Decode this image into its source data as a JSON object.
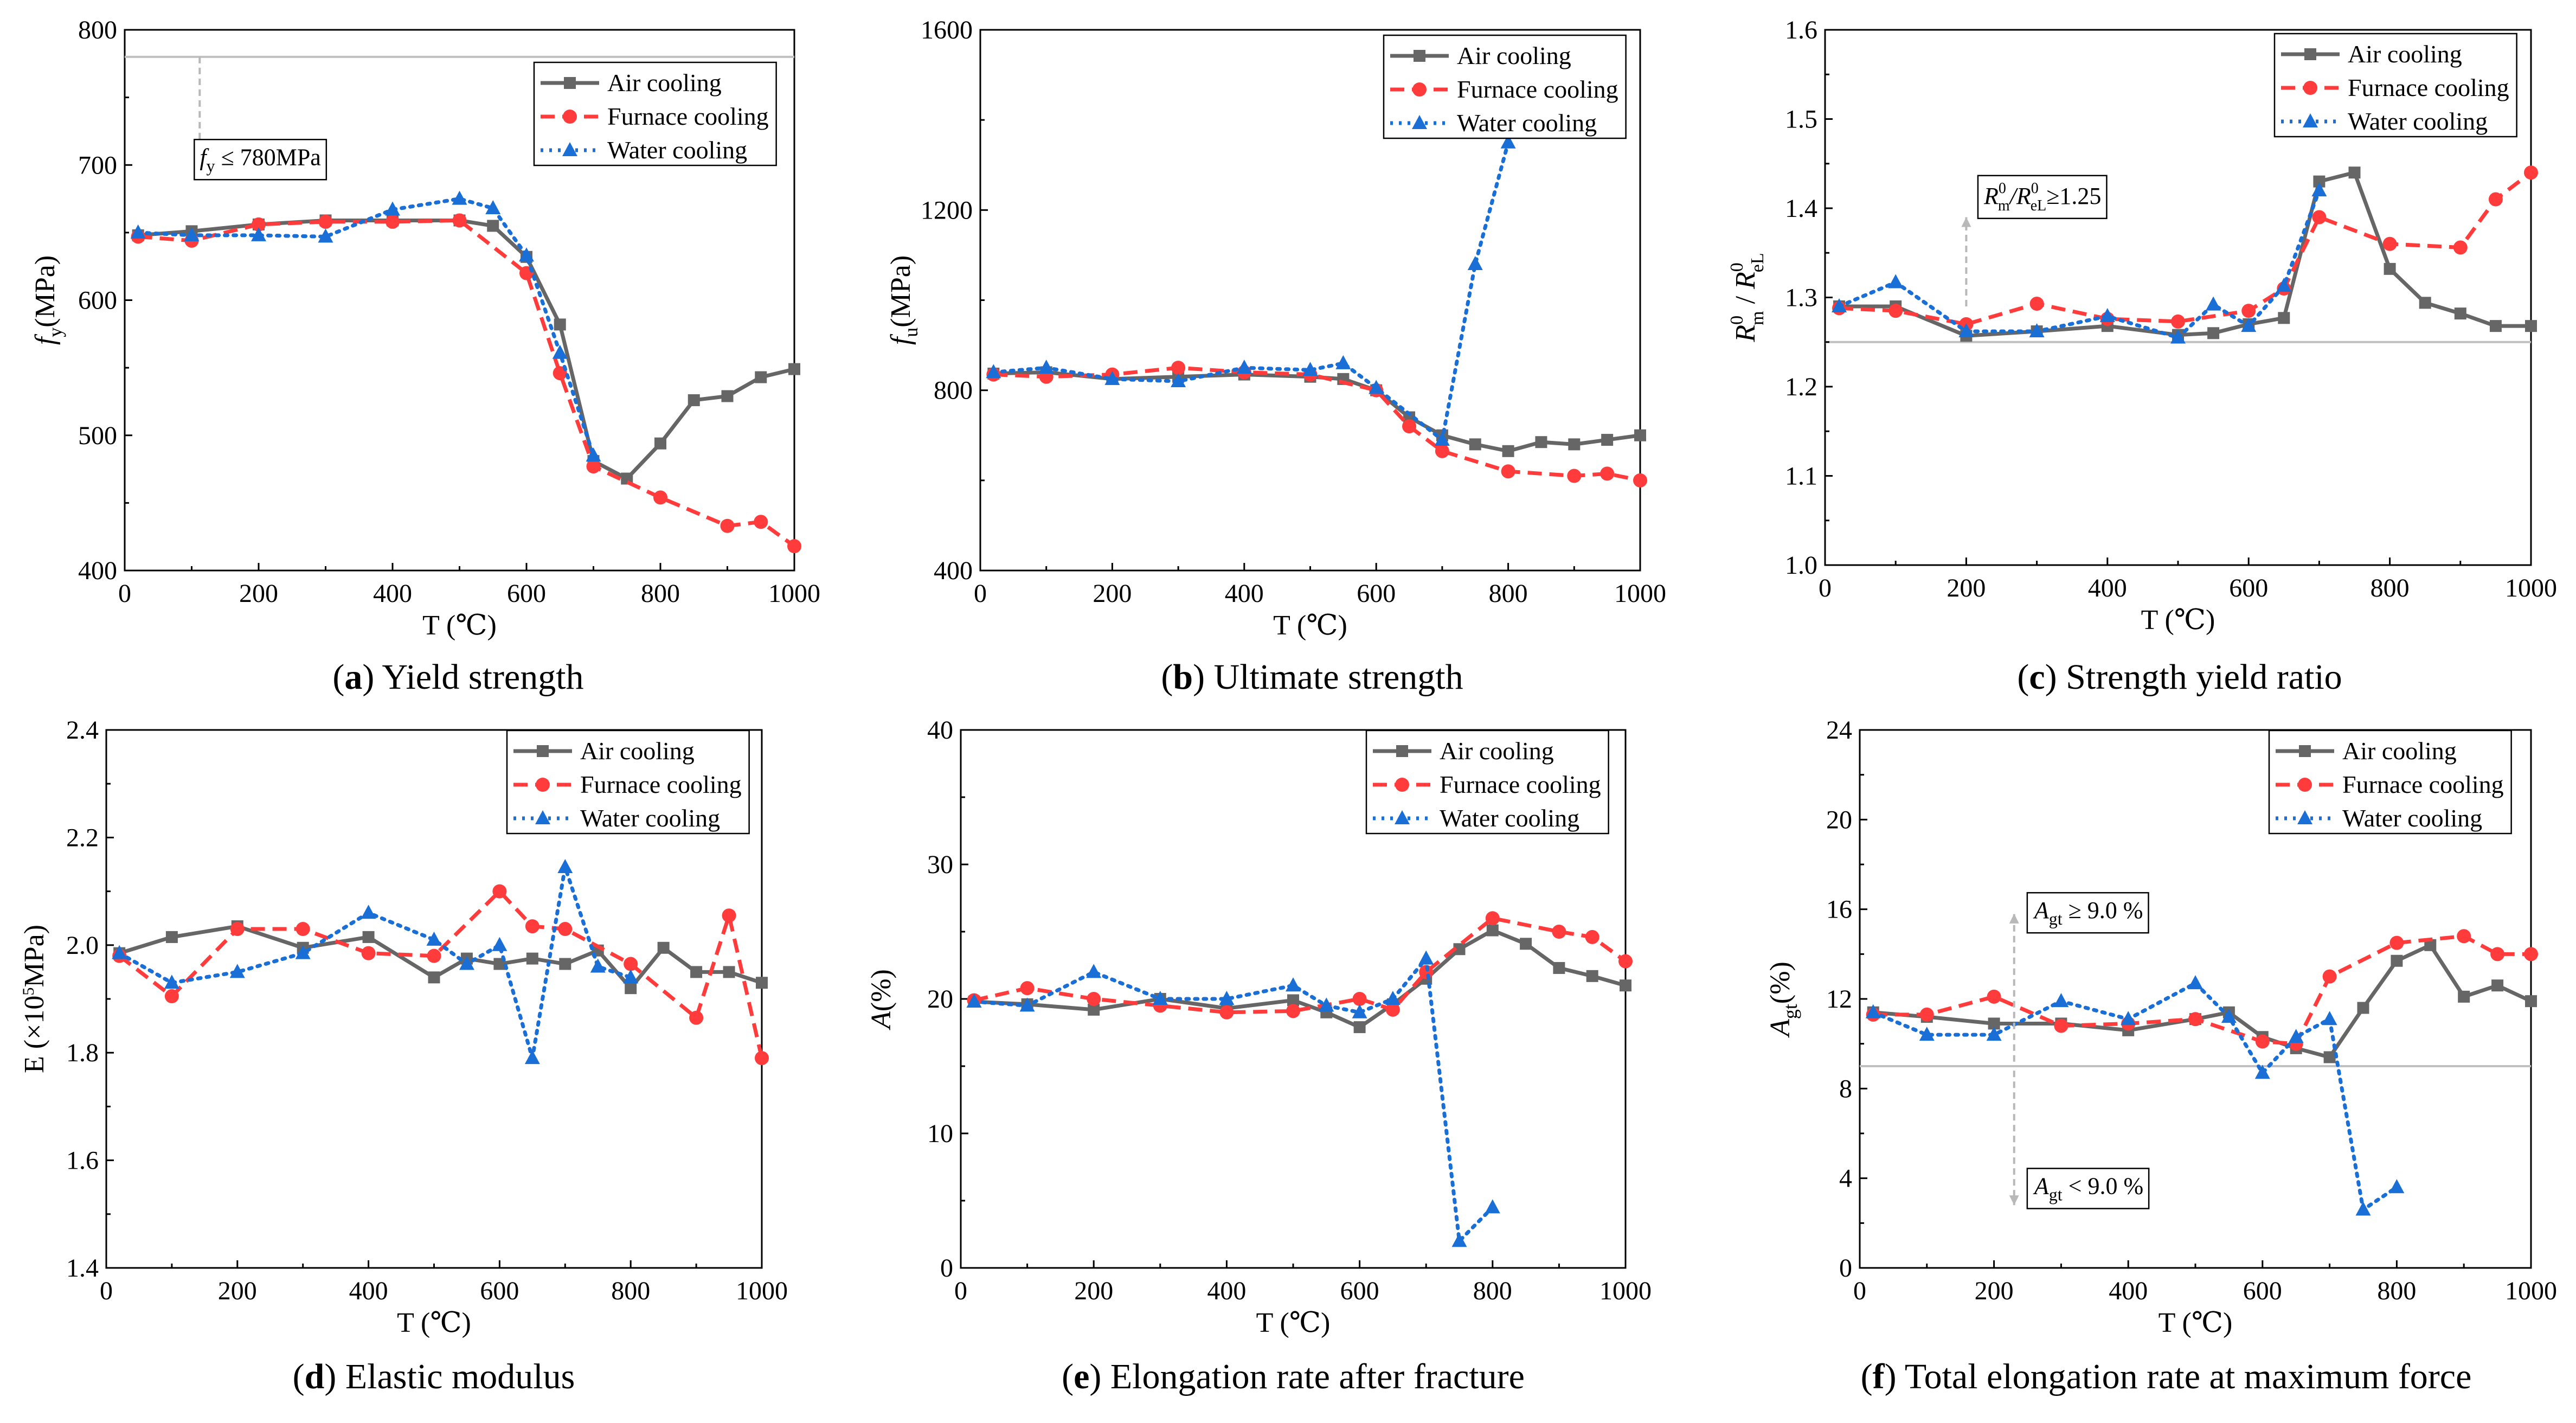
{
  "legend_labels": [
    "Air cooling",
    "Furnace cooling",
    "Water cooling"
  ],
  "series_colors": {
    "Air cooling": "#666666",
    "Furnace cooling": "#ff3b3b",
    "Water cooling": "#1a6fd6"
  },
  "marker_names": {
    "Air cooling": "square-marker",
    "Furnace cooling": "circle-marker",
    "Water cooling": "triangle-marker"
  },
  "chart_data": [
    {
      "id": "a",
      "type": "line",
      "caption_letter": "(a)",
      "caption_text": " Yield strength",
      "xlabel": "T (℃)",
      "ylabel_main": "f",
      "ylabel_sub": "y",
      "ylabel_tail": "(MPa)",
      "xlim": [
        0,
        1000
      ],
      "ylim": [
        400,
        800
      ],
      "xticks": [
        "0",
        "200",
        "400",
        "600",
        "800",
        "1000"
      ],
      "yticks": [
        "400",
        "500",
        "600",
        "700",
        "800"
      ],
      "ref_line": 780,
      "annotations": [
        {
          "text": "f",
          "sub": "y",
          "tail": " ≤ 780MPa",
          "x": 112,
          "y": 700,
          "arrow": [
            [
              112,
              780
            ],
            [
              112,
              705
            ]
          ]
        }
      ],
      "series": [
        {
          "name": "Air cooling",
          "x": [
            20,
            100,
            200,
            300,
            400,
            500,
            550,
            600,
            650,
            700,
            750,
            800,
            850,
            900,
            950,
            1000
          ],
          "values": [
            648,
            651,
            656,
            659,
            659,
            659,
            655,
            632,
            582,
            481,
            468,
            494,
            526,
            529,
            543,
            549
          ]
        },
        {
          "name": "Furnace cooling",
          "x": [
            20,
            100,
            200,
            300,
            400,
            500,
            600,
            650,
            700,
            800,
            900,
            950,
            1000
          ],
          "values": [
            647,
            644,
            656,
            658,
            658,
            659,
            620,
            546,
            477,
            454,
            433,
            436,
            418
          ]
        },
        {
          "name": "Water cooling",
          "x": [
            20,
            100,
            200,
            300,
            400,
            500,
            550,
            600,
            650,
            700
          ],
          "values": [
            650,
            648,
            648,
            647,
            667,
            675,
            668,
            633,
            561,
            485
          ]
        }
      ]
    },
    {
      "id": "b",
      "type": "line",
      "caption_letter": "(b)",
      "caption_text": " Ultimate strength",
      "xlabel": "T (℃)",
      "ylabel_main": "f",
      "ylabel_sub": "u",
      "ylabel_tail": "(MPa)",
      "xlim": [
        0,
        1000
      ],
      "ylim": [
        400,
        1600
      ],
      "xticks": [
        "0",
        "200",
        "400",
        "600",
        "800",
        "1000"
      ],
      "yticks": [
        "400",
        "800",
        "1200",
        "1600"
      ],
      "series": [
        {
          "name": "Air cooling",
          "x": [
            20,
            100,
            200,
            300,
            400,
            500,
            550,
            600,
            650,
            700,
            750,
            800,
            850,
            900,
            950,
            1000
          ],
          "values": [
            837,
            840,
            825,
            830,
            835,
            830,
            825,
            800,
            740,
            700,
            680,
            665,
            685,
            680,
            690,
            700
          ]
        },
        {
          "name": "Furnace cooling",
          "x": [
            20,
            100,
            200,
            300,
            400,
            500,
            600,
            650,
            700,
            800,
            900,
            950,
            1000
          ],
          "values": [
            835,
            830,
            835,
            850,
            840,
            835,
            800,
            720,
            665,
            620,
            610,
            615,
            600
          ]
        },
        {
          "name": "Water cooling",
          "x": [
            20,
            100,
            200,
            300,
            400,
            500,
            550,
            600,
            700,
            750,
            800
          ],
          "values": [
            840,
            850,
            825,
            820,
            850,
            845,
            860,
            805,
            690,
            1080,
            1350
          ]
        }
      ]
    },
    {
      "id": "c",
      "type": "line",
      "caption_letter": "(c)",
      "caption_text": " Strength yield ratio",
      "xlabel": "T (℃)",
      "xlim": [
        0,
        1000
      ],
      "ylim": [
        1.0,
        1.6
      ],
      "xticks": [
        "0",
        "200",
        "400",
        "600",
        "800",
        "1000"
      ],
      "yticks": [
        "1.0",
        "1.1",
        "1.2",
        "1.3",
        "1.4",
        "1.5",
        "1.6"
      ],
      "ylabel_rich": {
        "r1": "R",
        "r1_sup": "0",
        "r1_sub": "m",
        "slash": " / ",
        "r2": "R",
        "r2_sup": "0",
        "r2_sub": "eL"
      },
      "ref_line": 1.25,
      "annotations": [
        {
          "text": "R",
          "sup": "0",
          "sub": "m",
          "mid": "/R",
          "sup2": "0",
          "sub2": "eL",
          "tail": "≥1.25",
          "x": 225,
          "y": 1.405,
          "arrow": [
            [
              200,
              1.29
            ],
            [
              200,
              1.39
            ]
          ]
        }
      ],
      "series": [
        {
          "name": "Air cooling",
          "x": [
            20,
            100,
            200,
            300,
            400,
            500,
            550,
            600,
            650,
            700,
            750,
            800,
            850,
            900,
            950,
            1000
          ],
          "values": [
            1.29,
            1.29,
            1.257,
            1.262,
            1.268,
            1.258,
            1.26,
            1.27,
            1.277,
            1.43,
            1.44,
            1.332,
            1.294,
            1.282,
            1.268,
            1.268
          ]
        },
        {
          "name": "Furnace cooling",
          "x": [
            20,
            100,
            200,
            300,
            400,
            500,
            600,
            650,
            700,
            800,
            900,
            950,
            1000
          ],
          "values": [
            1.288,
            1.285,
            1.27,
            1.293,
            1.276,
            1.273,
            1.285,
            1.31,
            1.39,
            1.36,
            1.356,
            1.41,
            1.44
          ]
        },
        {
          "name": "Water cooling",
          "x": [
            20,
            100,
            200,
            300,
            400,
            500,
            550,
            600,
            650,
            700
          ],
          "values": [
            1.29,
            1.317,
            1.262,
            1.262,
            1.279,
            1.255,
            1.292,
            1.268,
            1.313,
            1.42
          ]
        }
      ]
    },
    {
      "id": "d",
      "type": "line",
      "caption_letter": "(d)",
      "caption_text": " Elastic modulus",
      "xlabel": "T (℃)",
      "ylabel_rich": {
        "pre": "E (×10",
        "sup": "5",
        "post": "MPa)"
      },
      "xlim": [
        0,
        1000
      ],
      "ylim": [
        1.4,
        2.4
      ],
      "xticks": [
        "0",
        "200",
        "400",
        "600",
        "800",
        "1000"
      ],
      "yticks": [
        "1.4",
        "1.6",
        "1.8",
        "2.0",
        "2.2",
        "2.4"
      ],
      "series": [
        {
          "name": "Air cooling",
          "x": [
            20,
            100,
            200,
            300,
            400,
            500,
            550,
            600,
            650,
            700,
            750,
            800,
            850,
            900,
            950,
            1000
          ],
          "values": [
            1.985,
            2.015,
            2.035,
            1.995,
            2.015,
            1.94,
            1.975,
            1.965,
            1.975,
            1.965,
            1.99,
            1.92,
            1.995,
            1.95,
            1.95,
            1.93
          ]
        },
        {
          "name": "Furnace cooling",
          "x": [
            20,
            100,
            200,
            300,
            400,
            500,
            600,
            650,
            700,
            800,
            900,
            950,
            1000
          ],
          "values": [
            1.98,
            1.905,
            2.03,
            2.03,
            1.985,
            1.98,
            2.1,
            2.035,
            2.03,
            1.965,
            1.865,
            2.055,
            1.79
          ]
        },
        {
          "name": "Water cooling",
          "x": [
            20,
            100,
            200,
            300,
            400,
            500,
            550,
            600,
            650,
            700,
            750,
            800
          ],
          "values": [
            1.985,
            1.93,
            1.95,
            1.985,
            2.06,
            2.01,
            1.965,
            2.0,
            1.79,
            2.145,
            1.96,
            1.94
          ]
        }
      ]
    },
    {
      "id": "e",
      "type": "line",
      "caption_letter": "(e)",
      "caption_text": " Elongation rate after fracture",
      "xlabel": "T (℃)",
      "ylabel_main": "A",
      "ylabel_sub": "",
      "ylabel_tail": "(%)",
      "xlim": [
        0,
        1000
      ],
      "ylim": [
        0,
        40
      ],
      "xticks": [
        "0",
        "200",
        "400",
        "600",
        "800",
        "1000"
      ],
      "yticks": [
        "0",
        "10",
        "20",
        "30",
        "40"
      ],
      "series": [
        {
          "name": "Air cooling",
          "x": [
            20,
            100,
            200,
            300,
            400,
            500,
            550,
            600,
            650,
            700,
            750,
            800,
            850,
            900,
            950,
            1000
          ],
          "values": [
            19.8,
            19.6,
            19.2,
            20.0,
            19.3,
            19.9,
            19.0,
            17.9,
            19.6,
            21.5,
            23.7,
            25.1,
            24.1,
            22.3,
            21.7,
            21.0
          ]
        },
        {
          "name": "Furnace cooling",
          "x": [
            20,
            100,
            200,
            300,
            400,
            500,
            600,
            650,
            700,
            800,
            900,
            950,
            1000
          ],
          "values": [
            19.9,
            20.8,
            20.0,
            19.5,
            19.0,
            19.1,
            20.0,
            19.2,
            22.0,
            26.0,
            25.0,
            24.6,
            22.8
          ]
        },
        {
          "name": "Water cooling",
          "x": [
            20,
            100,
            200,
            300,
            400,
            500,
            550,
            600,
            650,
            700,
            750,
            800
          ],
          "values": [
            19.8,
            19.5,
            22.0,
            20.0,
            20.0,
            21.0,
            19.5,
            19.0,
            20.0,
            23.0,
            2.0,
            4.5
          ]
        }
      ]
    },
    {
      "id": "f",
      "type": "line",
      "caption_letter": "(f)",
      "caption_text": " Total elongation rate at maximum force",
      "xlabel": "T (℃)",
      "ylabel_main": "A",
      "ylabel_sub": "gt",
      "ylabel_tail": "(%)",
      "xlim": [
        0,
        1000
      ],
      "ylim": [
        0,
        24
      ],
      "xticks": [
        "0",
        "200",
        "400",
        "600",
        "800",
        "1000"
      ],
      "yticks": [
        "0",
        "4",
        "8",
        "12",
        "16",
        "20",
        "24"
      ],
      "ref_line": 9.0,
      "annotations": [
        {
          "text": "A",
          "sub": "gt",
          "tail": " ≥ 9.0 %",
          "x": 260,
          "y": 15.6,
          "arrow": [
            [
              230,
              9.2
            ],
            [
              230,
              15.8
            ]
          ]
        },
        {
          "text": "A",
          "sub": "gt",
          "tail": " < 9.0 %",
          "x": 260,
          "y": 3.3,
          "arrow": [
            [
              230,
              8.8
            ],
            [
              230,
              2.8
            ]
          ]
        }
      ],
      "series": [
        {
          "name": "Air cooling",
          "x": [
            20,
            100,
            200,
            300,
            400,
            500,
            550,
            600,
            650,
            700,
            750,
            800,
            850,
            900,
            950,
            1000
          ],
          "values": [
            11.4,
            11.2,
            10.9,
            10.9,
            10.6,
            11.1,
            11.4,
            10.3,
            9.8,
            9.4,
            11.6,
            13.7,
            14.4,
            12.1,
            12.6,
            11.9
          ]
        },
        {
          "name": "Furnace cooling",
          "x": [
            20,
            100,
            200,
            300,
            400,
            500,
            600,
            650,
            700,
            800,
            900,
            950,
            1000
          ],
          "values": [
            11.3,
            11.3,
            12.1,
            10.8,
            10.9,
            11.1,
            10.1,
            10.0,
            13.0,
            14.5,
            14.8,
            14.0,
            14.0
          ]
        },
        {
          "name": "Water cooling",
          "x": [
            20,
            100,
            200,
            300,
            400,
            500,
            550,
            600,
            650,
            700,
            750,
            800
          ],
          "values": [
            11.4,
            10.4,
            10.4,
            11.9,
            11.1,
            12.7,
            11.2,
            8.7,
            10.3,
            11.1,
            2.6,
            3.6
          ]
        }
      ]
    }
  ]
}
